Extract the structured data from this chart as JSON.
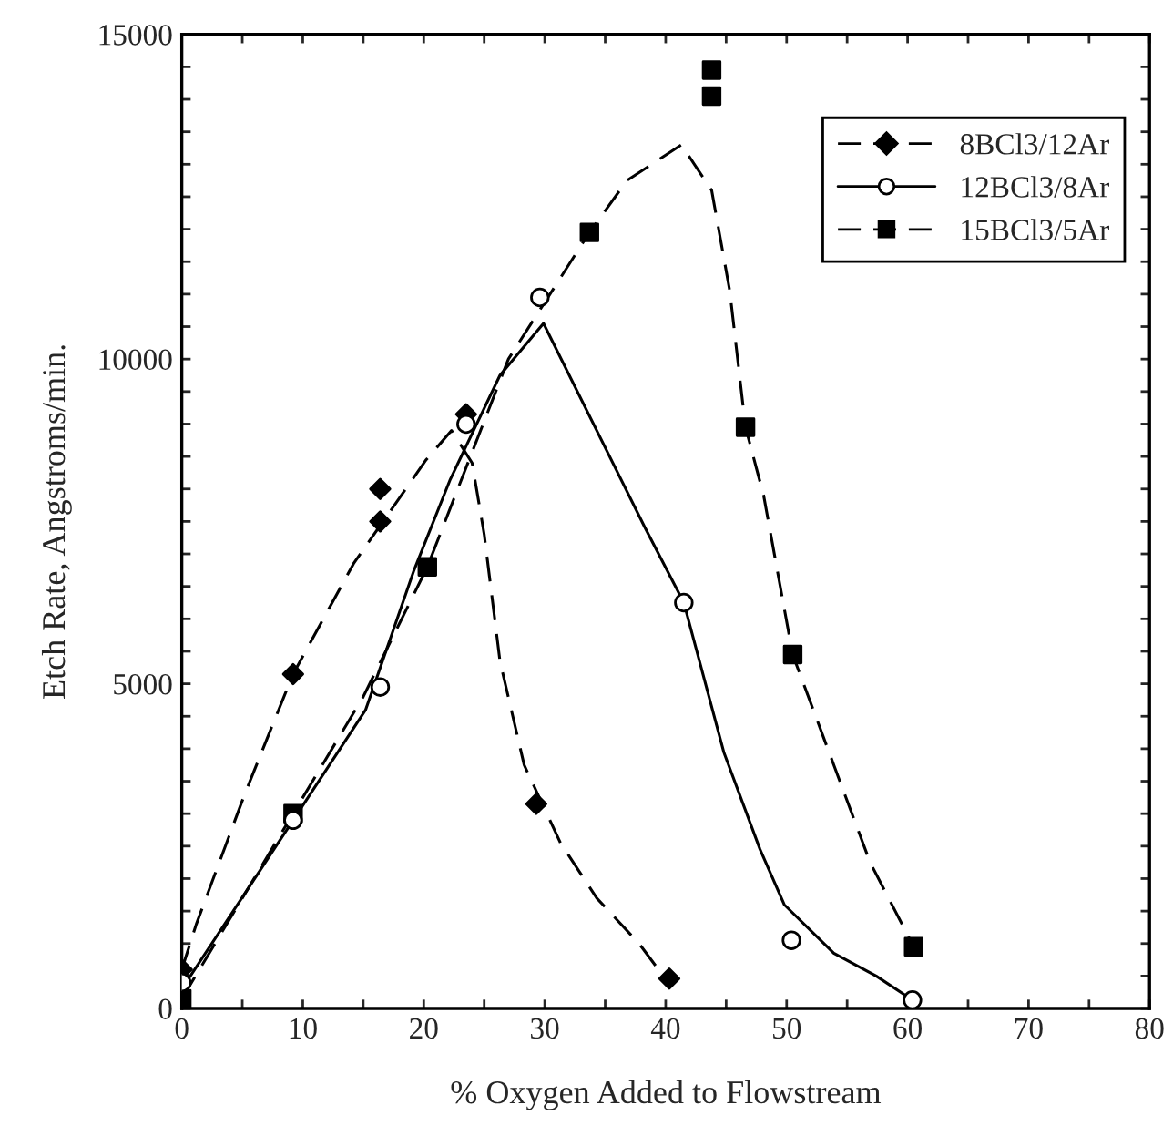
{
  "chart_data": {
    "type": "scatter",
    "xlabel": "% Oxygen Added to Flowstream",
    "ylabel": "Etch Rate, Angstroms/min.",
    "xlim": [
      0,
      80
    ],
    "ylim": [
      0,
      15000
    ],
    "xticks": [
      0,
      {
        "value": 5,
        "label": null
      },
      10,
      {
        "value": 15,
        "label": null
      },
      20,
      {
        "value": 25,
        "label": null
      },
      30,
      {
        "value": 35,
        "label": null
      },
      40,
      {
        "value": 45,
        "label": null
      },
      50,
      {
        "value": 55,
        "label": null
      },
      60,
      {
        "value": 65,
        "label": null
      },
      70,
      {
        "value": 75,
        "label": null
      },
      80
    ],
    "yticks": [
      0,
      {
        "value": 500,
        "label": null
      },
      {
        "value": 1000,
        "label": null
      },
      {
        "value": 1500,
        "label": null
      },
      {
        "value": 2000,
        "label": null
      },
      {
        "value": 2500,
        "label": null
      },
      {
        "value": 3000,
        "label": null
      },
      {
        "value": 3500,
        "label": null
      },
      {
        "value": 4000,
        "label": null
      },
      {
        "value": 4500,
        "label": null
      },
      5000,
      {
        "value": 5500,
        "label": null
      },
      {
        "value": 6000,
        "label": null
      },
      {
        "value": 6500,
        "label": null
      },
      {
        "value": 7000,
        "label": null
      },
      {
        "value": 7500,
        "label": null
      },
      {
        "value": 8000,
        "label": null
      },
      {
        "value": 8500,
        "label": null
      },
      {
        "value": 9000,
        "label": null
      },
      {
        "value": 9500,
        "label": null
      },
      10000,
      {
        "value": 10500,
        "label": null
      },
      {
        "value": 11000,
        "label": null
      },
      {
        "value": 11500,
        "label": null
      },
      {
        "value": 12000,
        "label": null
      },
      {
        "value": 12500,
        "label": null
      },
      {
        "value": 13000,
        "label": null
      },
      {
        "value": 13500,
        "label": null
      },
      {
        "value": 14000,
        "label": null
      },
      {
        "value": 14500,
        "label": null
      },
      15000
    ],
    "grid": false,
    "legend": "top right",
    "series": [
      {
        "name": "8BCl3/12Ar",
        "marker": "diamond",
        "line_style": "dashed",
        "color": "#000000",
        "x": [
          0,
          9.2,
          16.4,
          16.4,
          23.5,
          29.3,
          40.3
        ],
        "values": [
          600,
          5150,
          7500,
          8000,
          9150,
          3150,
          460
        ]
      },
      {
        "name": "12BCl3/8Ar",
        "marker": "circle",
        "line_style": "solid",
        "color": "#000000",
        "x": [
          0,
          9.2,
          16.4,
          23.5,
          29.6,
          41.5,
          50.4,
          60.4
        ],
        "values": [
          400,
          2900,
          4950,
          9000,
          10950,
          6250,
          1050,
          130
        ]
      },
      {
        "name": "15BCl3/5Ar",
        "marker": "square",
        "line_style": "dashed",
        "color": "#000000",
        "x": [
          0,
          9.2,
          20.3,
          33.7,
          43.8,
          43.8,
          46.6,
          50.5,
          60.5
        ],
        "values": [
          150,
          3000,
          6800,
          11950,
          14450,
          14050,
          8950,
          5450,
          950
        ]
      },
      {
        "type": "line",
        "marker": "none",
        "line_style": "dashed",
        "color": "#000000",
        "x": [
          0,
          1.2,
          5.2,
          9.2,
          14.2,
          20.2,
          22.3,
          24,
          25,
          26.3,
          28.3,
          31.3,
          34.3,
          37.8,
          40
        ],
        "values": [
          600,
          1300,
          3300,
          5150,
          6850,
          8450,
          8900,
          8400,
          7300,
          5350,
          3750,
          2550,
          1700,
          1000,
          450
        ]
      },
      {
        "type": "line",
        "marker": "none",
        "line_style": "solid",
        "color": "#000000",
        "x": [
          0,
          6.2,
          9.2,
          15.2,
          19.2,
          22.2,
          26.3,
          29.9,
          38.3,
          41.5,
          44.8,
          47.8,
          49.8,
          53.9,
          57.4,
          60.4
        ],
        "values": [
          300,
          2050,
          2900,
          4600,
          6750,
          8150,
          9750,
          10550,
          7400,
          6250,
          3950,
          2450,
          1600,
          850,
          500,
          130
        ]
      },
      {
        "type": "line",
        "marker": "none",
        "line_style": "dashed",
        "color": "#000000",
        "x": [
          0,
          9.2,
          15,
          20.3,
          27,
          33.7,
          36.8,
          41.3,
          43.8,
          45.3,
          46.6,
          48.1,
          50.5,
          53.9,
          56.9,
          60.5
        ],
        "values": [
          150,
          3000,
          4800,
          6800,
          10000,
          11950,
          12750,
          13300,
          12600,
          11050,
          8950,
          7900,
          5450,
          3750,
          2250,
          950
        ]
      }
    ]
  }
}
